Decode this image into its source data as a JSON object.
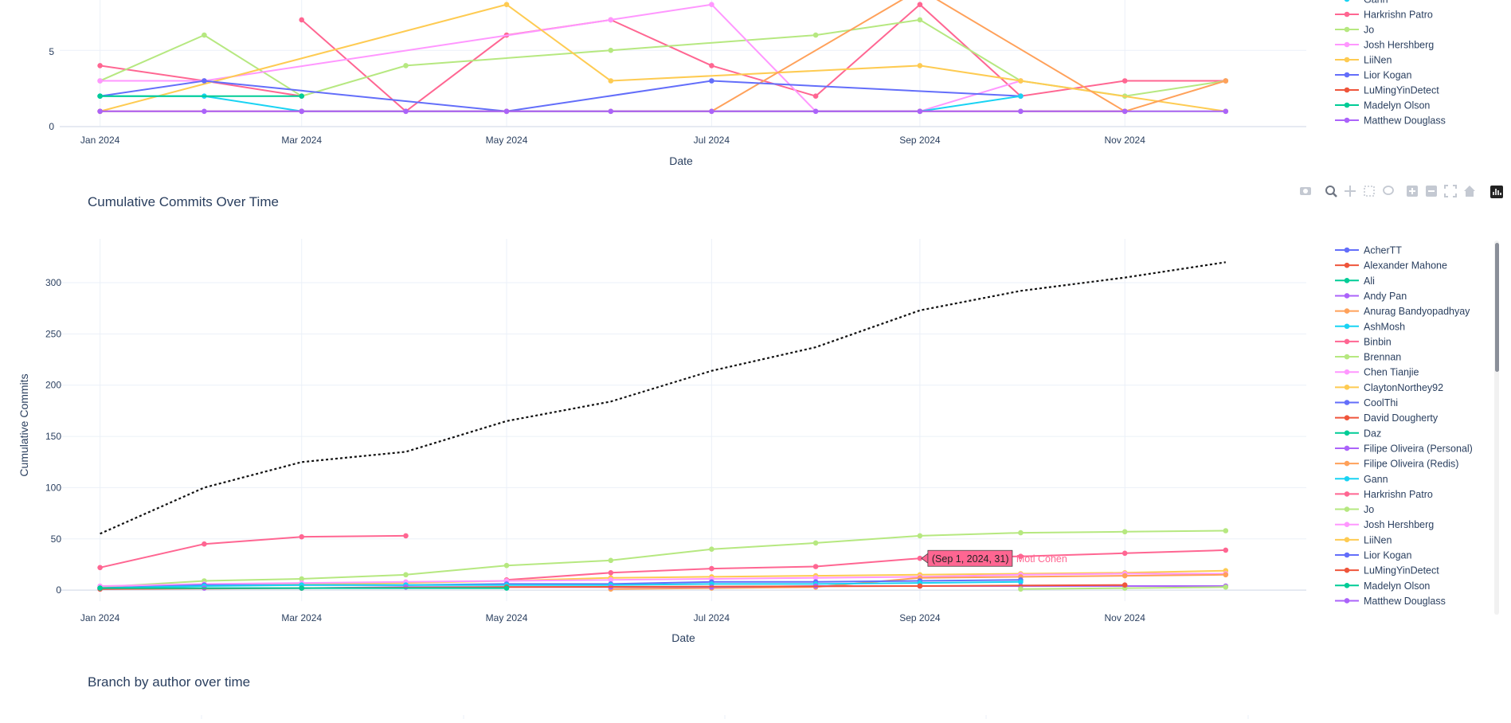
{
  "charts": {
    "top": {
      "xlabel": "Date",
      "y_ticks": [
        "0",
        "5"
      ]
    },
    "main": {
      "title": "Cumulative Commits Over Time",
      "xlabel": "Date",
      "ylabel": "Cumulative Commits",
      "y_ticks": [
        "0",
        "50",
        "100",
        "150",
        "200",
        "250",
        "300"
      ]
    },
    "bottom": {
      "title": "Branch by author over time"
    },
    "x_ticks": [
      "Jan 2024",
      "Mar 2024",
      "May 2024",
      "Jul 2024",
      "Sep 2024",
      "Nov 2024"
    ]
  },
  "tooltip": {
    "point": "(Sep 1, 2024, 31)",
    "name": "Moti Cohen"
  },
  "modebar_icons": [
    "camera-icon",
    "zoom-icon",
    "pan-icon",
    "box-select-icon",
    "lasso-icon",
    "zoom-in-icon",
    "zoom-out-icon",
    "autoscale-icon",
    "reset-axes-icon",
    "plotly-logo-icon"
  ],
  "top_legend": [
    {
      "name": "Gann",
      "color": "#19d3f3"
    },
    {
      "name": "Harkrishn Patro",
      "color": "#ff6692"
    },
    {
      "name": "Jo",
      "color": "#b6e880"
    },
    {
      "name": "Josh Hershberg",
      "color": "#ff97ff"
    },
    {
      "name": "LiiNen",
      "color": "#fecb52"
    },
    {
      "name": "Lior Kogan",
      "color": "#636efa"
    },
    {
      "name": "LuMingYinDetect",
      "color": "#ef553b"
    },
    {
      "name": "Madelyn Olson",
      "color": "#00cc96"
    },
    {
      "name": "Matthew Douglass",
      "color": "#ab63fa"
    }
  ],
  "main_legend": [
    {
      "name": "AcherTT",
      "color": "#636efa"
    },
    {
      "name": "Alexander Mahone",
      "color": "#ef553b"
    },
    {
      "name": "Ali",
      "color": "#00cc96"
    },
    {
      "name": "Andy Pan",
      "color": "#ab63fa"
    },
    {
      "name": "Anurag Bandyopadhyay",
      "color": "#ffa15a"
    },
    {
      "name": "AshMosh",
      "color": "#19d3f3"
    },
    {
      "name": "Binbin",
      "color": "#ff6692"
    },
    {
      "name": "Brennan",
      "color": "#b6e880"
    },
    {
      "name": "Chen Tianjie",
      "color": "#ff97ff"
    },
    {
      "name": "ClaytonNorthey92",
      "color": "#fecb52"
    },
    {
      "name": "CoolThi",
      "color": "#636efa"
    },
    {
      "name": "David Dougherty",
      "color": "#ef553b"
    },
    {
      "name": "Daz",
      "color": "#00cc96"
    },
    {
      "name": "Filipe Oliveira (Personal)",
      "color": "#ab63fa"
    },
    {
      "name": "Filipe Oliveira (Redis)",
      "color": "#ffa15a"
    },
    {
      "name": "Gann",
      "color": "#19d3f3"
    },
    {
      "name": "Harkrishn Patro",
      "color": "#ff6692"
    },
    {
      "name": "Jo",
      "color": "#b6e880"
    },
    {
      "name": "Josh Hershberg",
      "color": "#ff97ff"
    },
    {
      "name": "LiiNen",
      "color": "#fecb52"
    },
    {
      "name": "Lior Kogan",
      "color": "#636efa"
    },
    {
      "name": "LuMingYinDetect",
      "color": "#ef553b"
    },
    {
      "name": "Madelyn Olson",
      "color": "#00cc96"
    },
    {
      "name": "Matthew Douglass",
      "color": "#ab63fa"
    }
  ],
  "chart_data": [
    {
      "type": "line",
      "xlabel": "Date",
      "ylabel": "",
      "x_type": "date",
      "xlim": [
        "2023-12-20",
        "2024-12-25"
      ],
      "ylim": [
        0,
        8.3
      ],
      "legend_position": "right",
      "series": [
        {
          "name": "Harkrishn Patro",
          "color": "#ff6692",
          "x": [
            "2024-01-01",
            "2024-02-01",
            "2024-03-01"
          ],
          "y": [
            4,
            3,
            2
          ]
        },
        {
          "name": "Binbin",
          "color": "#ff6692",
          "x": [
            "2024-03-01",
            "2024-04-01",
            "2024-05-01",
            "2024-06-01",
            "2024-07-01",
            "2024-08-01",
            "2024-09-01",
            "2024-10-01",
            "2024-11-01",
            "2024-12-01"
          ],
          "y": [
            7,
            1,
            6,
            7,
            4,
            2,
            8,
            2,
            3,
            3
          ]
        },
        {
          "name": "Brennan",
          "color": "#b6e880",
          "x": [
            "2024-01-01",
            "2024-02-01",
            "2024-03-01",
            "2024-04-01",
            "2024-06-01",
            "2024-08-01",
            "2024-09-01",
            "2024-10-01",
            "2024-11-01",
            "2024-12-01"
          ],
          "y": [
            3,
            6,
            2,
            4,
            5,
            6,
            7,
            3,
            2,
            3
          ]
        },
        {
          "name": "Jo",
          "color": "#b6e880",
          "x": [
            "2024-10-01",
            "2024-11-01",
            "2024-12-01"
          ],
          "y": [
            1,
            1,
            1
          ]
        },
        {
          "name": "Josh Hershberg",
          "color": "#ff97ff",
          "x": [
            "2024-01-01",
            "2024-02-01",
            "2024-06-01",
            "2024-07-01",
            "2024-08-01",
            "2024-09-01",
            "2024-10-01"
          ],
          "y": [
            3,
            3,
            7,
            8,
            1,
            1,
            3
          ]
        },
        {
          "name": "LiiNen",
          "color": "#fecb52",
          "x": [
            "2024-01-01",
            "2024-05-01",
            "2024-06-01",
            "2024-09-01",
            "2024-10-01",
            "2024-12-01"
          ],
          "y": [
            1,
            8,
            3,
            4,
            3,
            1
          ]
        },
        {
          "name": "Anurag Bandyopadhyay",
          "color": "#ffa15a",
          "x": [
            "2024-06-01",
            "2024-07-01",
            "2024-09-01",
            "2024-11-01",
            "2024-12-01"
          ],
          "y": [
            1,
            1,
            9,
            1,
            3
          ]
        },
        {
          "name": "Lior Kogan",
          "color": "#636efa",
          "x": [
            "2024-01-01",
            "2024-02-01",
            "2024-05-01",
            "2024-07-01",
            "2024-10-01"
          ],
          "y": [
            2,
            3,
            1,
            3,
            2
          ]
        },
        {
          "name": "Gann",
          "color": "#19d3f3",
          "x": [
            "2024-01-01",
            "2024-02-01",
            "2024-03-01",
            "2024-09-01",
            "2024-10-01"
          ],
          "y": [
            2,
            2,
            1,
            1,
            2
          ]
        },
        {
          "name": "Madelyn Olson",
          "color": "#00cc96",
          "x": [
            "2024-01-01",
            "2024-03-01"
          ],
          "y": [
            2,
            2
          ]
        },
        {
          "name": "Alexander Mahone",
          "color": "#ef553b",
          "x": [
            "2024-01-01",
            "2024-03-01",
            "2024-05-01",
            "2024-09-01",
            "2024-11-01"
          ],
          "y": [
            1,
            1,
            1,
            1,
            1
          ]
        },
        {
          "name": "Matthew Douglass",
          "color": "#ab63fa",
          "x": [
            "2024-01-01",
            "2024-02-01",
            "2024-03-01",
            "2024-04-01",
            "2024-05-01",
            "2024-06-01",
            "2024-07-01",
            "2024-08-01",
            "2024-09-01",
            "2024-10-01",
            "2024-11-01",
            "2024-12-01"
          ],
          "y": [
            1,
            1,
            1,
            1,
            1,
            1,
            1,
            1,
            1,
            1,
            1,
            1
          ]
        }
      ]
    },
    {
      "type": "line",
      "title": "Cumulative Commits Over Time",
      "xlabel": "Date",
      "ylabel": "Cumulative Commits",
      "x_type": "date",
      "xlim": [
        "2023-12-20",
        "2024-12-25"
      ],
      "ylim": [
        -10,
        335
      ],
      "legend_position": "right",
      "series": [
        {
          "name": "",
          "color": "#111111",
          "dash": "dot",
          "markers": false,
          "x": [
            "2024-01-01",
            "2024-02-01",
            "2024-03-01",
            "2024-04-01",
            "2024-05-01",
            "2024-06-01",
            "2024-07-01",
            "2024-08-01",
            "2024-09-01",
            "2024-10-01",
            "2024-11-01",
            "2024-12-01"
          ],
          "y": [
            55,
            100,
            125,
            135,
            165,
            184,
            214,
            237,
            273,
            292,
            305,
            320
          ]
        },
        {
          "name": "Harkrishn Patro",
          "color": "#ff6692",
          "x": [
            "2024-01-01",
            "2024-02-01",
            "2024-03-01",
            "2024-04-01"
          ],
          "y": [
            22,
            45,
            52,
            53
          ]
        },
        {
          "name": "Brennan",
          "color": "#b6e880",
          "x": [
            "2024-01-01",
            "2024-02-01",
            "2024-03-01",
            "2024-04-01",
            "2024-05-01",
            "2024-06-01",
            "2024-07-01",
            "2024-08-01",
            "2024-09-01",
            "2024-10-01",
            "2024-11-01",
            "2024-12-01"
          ],
          "y": [
            3,
            9,
            11,
            15,
            24,
            29,
            40,
            46,
            53,
            56,
            57,
            58
          ]
        },
        {
          "name": "Moti Cohen",
          "color": "#ff6692",
          "x": [
            "2024-05-01",
            "2024-06-01",
            "2024-07-01",
            "2024-08-01",
            "2024-09-01",
            "2024-10-01",
            "2024-11-01",
            "2024-12-01"
          ],
          "y": [
            10,
            17,
            21,
            23,
            31,
            33,
            36,
            39
          ]
        },
        {
          "name": "LiiNen",
          "color": "#fecb52",
          "x": [
            "2024-01-01",
            "2024-02-01",
            "2024-03-01",
            "2024-04-01",
            "2024-05-01",
            "2024-06-01",
            "2024-07-01",
            "2024-08-01",
            "2024-09-01",
            "2024-10-01",
            "2024-11-01",
            "2024-12-01"
          ],
          "y": [
            2,
            5,
            6,
            7,
            9,
            12,
            13,
            14,
            15,
            16,
            17,
            19
          ]
        },
        {
          "name": "Josh Hershberg",
          "color": "#ff97ff",
          "x": [
            "2024-01-01",
            "2024-02-01",
            "2024-03-01",
            "2024-04-01",
            "2024-05-01",
            "2024-06-01",
            "2024-07-01",
            "2024-08-01",
            "2024-09-01",
            "2024-10-01",
            "2024-11-01",
            "2024-12-01"
          ],
          "y": [
            4,
            6,
            7,
            8,
            9,
            10,
            11,
            12,
            13,
            15,
            16,
            16
          ]
        },
        {
          "name": "Anurag Bandyopadhyay",
          "color": "#ffa15a",
          "x": [
            "2024-06-01",
            "2024-07-01",
            "2024-08-01",
            "2024-09-01",
            "2024-10-01",
            "2024-11-01",
            "2024-12-01"
          ],
          "y": [
            1,
            2,
            3,
            12,
            13,
            14,
            15
          ]
        },
        {
          "name": "Lior Kogan",
          "color": "#636efa",
          "x": [
            "2024-01-01",
            "2024-02-01",
            "2024-03-01",
            "2024-04-01",
            "2024-05-01",
            "2024-06-01",
            "2024-07-01",
            "2024-08-01",
            "2024-09-01",
            "2024-10-01"
          ],
          "y": [
            2,
            5,
            5,
            5,
            6,
            6,
            8,
            8,
            9,
            10
          ]
        },
        {
          "name": "Gann",
          "color": "#19d3f3",
          "x": [
            "2024-01-01",
            "2024-02-01",
            "2024-03-01",
            "2024-04-01",
            "2024-05-01",
            "2024-06-01",
            "2024-07-01",
            "2024-08-01",
            "2024-09-01",
            "2024-10-01"
          ],
          "y": [
            2,
            4,
            5,
            5,
            5,
            5,
            6,
            6,
            7,
            8
          ]
        },
        {
          "name": "Matthew Douglass",
          "color": "#ab63fa",
          "x": [
            "2024-01-01",
            "2024-02-01",
            "2024-03-01",
            "2024-04-01",
            "2024-05-01",
            "2024-06-01",
            "2024-07-01",
            "2024-08-01",
            "2024-09-01",
            "2024-10-01",
            "2024-11-01",
            "2024-12-01"
          ],
          "y": [
            1,
            2,
            2,
            3,
            3,
            3,
            3,
            4,
            4,
            4,
            4,
            4
          ]
        },
        {
          "name": "Jo",
          "color": "#b6e880",
          "x": [
            "2024-10-01",
            "2024-11-01",
            "2024-12-01"
          ],
          "y": [
            1,
            2,
            3
          ]
        },
        {
          "name": "Alexander Mahone",
          "color": "#ef553b",
          "x": [
            "2024-01-01",
            "2024-03-01",
            "2024-05-01",
            "2024-09-01",
            "2024-11-01"
          ],
          "y": [
            1,
            2,
            3,
            4,
            5
          ]
        },
        {
          "name": "Madelyn Olson",
          "color": "#00cc96",
          "x": [
            "2024-01-01",
            "2024-03-01",
            "2024-05-01"
          ],
          "y": [
            2,
            2,
            2
          ]
        }
      ]
    }
  ]
}
